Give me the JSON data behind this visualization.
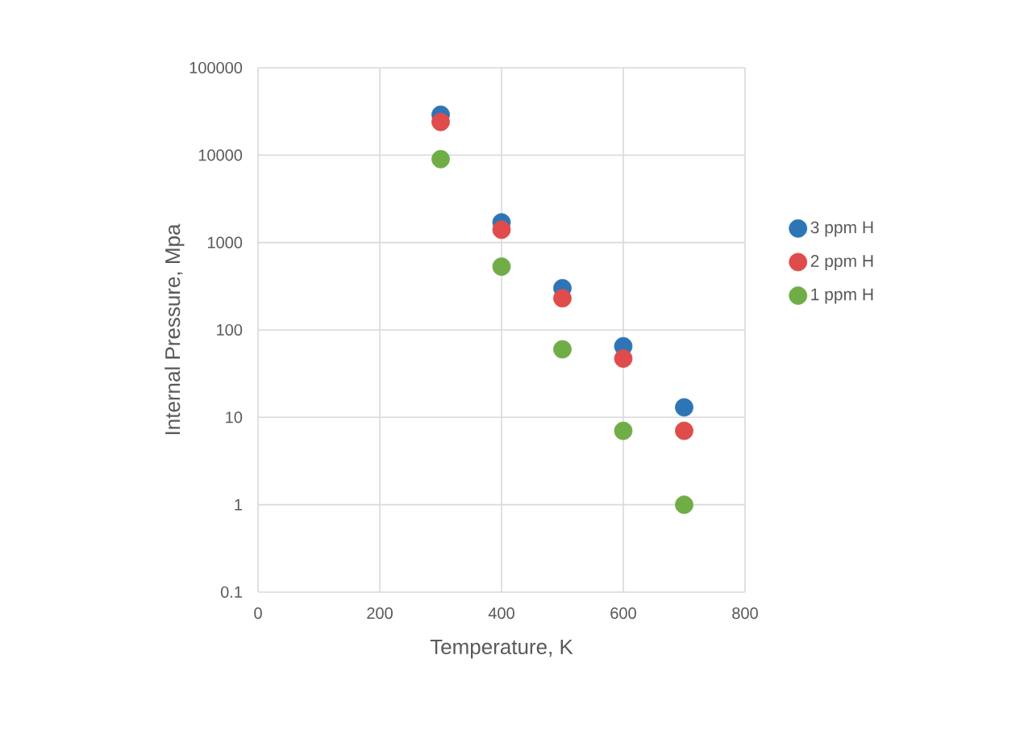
{
  "chart_data": {
    "type": "scatter",
    "xlabel": "Temperature, K",
    "ylabel": "Internal Pressure, Mpa",
    "x": [
      300,
      400,
      500,
      600,
      700
    ],
    "series": [
      {
        "name": "3 ppm H",
        "color": "#2e75b6",
        "values": [
          29000,
          1700,
          300,
          65,
          13
        ]
      },
      {
        "name": "2 ppm H",
        "color": "#e04b4b",
        "values": [
          24000,
          1400,
          230,
          47,
          7
        ]
      },
      {
        "name": "1 ppm H",
        "color": "#70ad47",
        "values": [
          9000,
          530,
          60,
          7,
          1
        ]
      }
    ],
    "xlim": [
      0,
      800
    ],
    "xticks": [
      0,
      200,
      400,
      600,
      800
    ],
    "ylim": [
      0.1,
      100000
    ],
    "yticks": [
      0.1,
      1,
      10,
      100,
      1000,
      10000,
      100000
    ],
    "log": "y",
    "grid": true,
    "legend": "right"
  }
}
